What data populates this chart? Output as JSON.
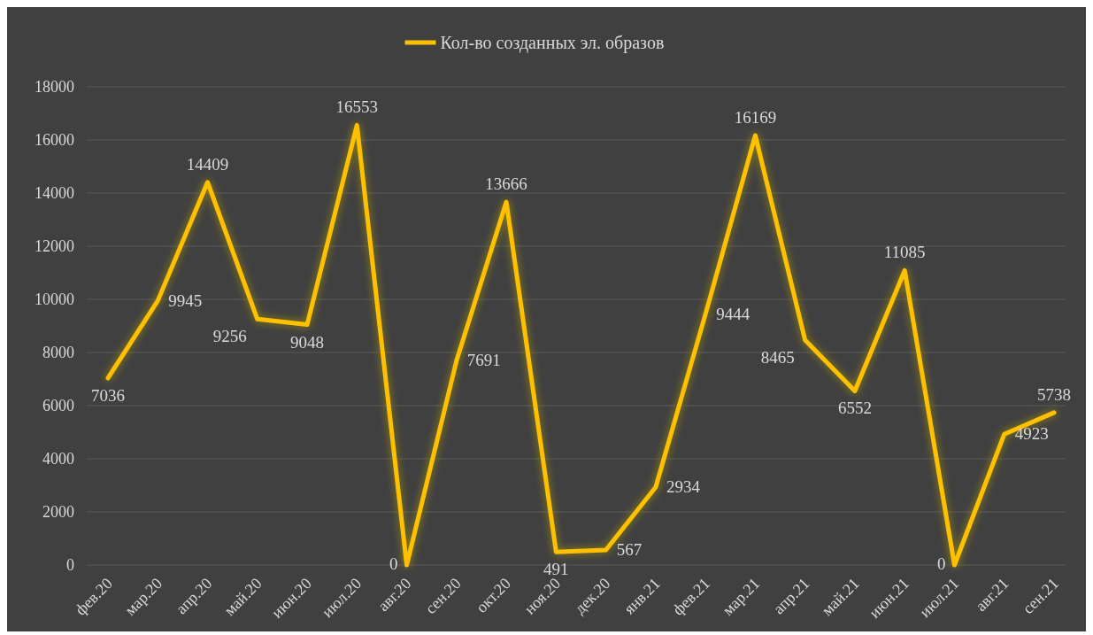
{
  "chart_data": {
    "type": "line",
    "categories": [
      "фев.20",
      "мар.20",
      "апр.20",
      "май.20",
      "июн.20",
      "июл.20",
      "авг.20",
      "сен.20",
      "окт.20",
      "ноя.20",
      "дек.20",
      "янв.21",
      "фев.21",
      "мар.21",
      "апр.21",
      "май.21",
      "июн.21",
      "июл.21",
      "авг.21",
      "сен.21"
    ],
    "series": [
      {
        "name": "Кол-во созданных эл. образов",
        "color": "#ffc000",
        "values": [
          7036,
          9945,
          14409,
          9256,
          9048,
          16553,
          0,
          7691,
          13666,
          491,
          567,
          2934,
          9444,
          16169,
          8465,
          6552,
          11085,
          0,
          4923,
          5738
        ]
      }
    ],
    "ylim": [
      0,
      18000
    ],
    "yticks": [
      0,
      2000,
      4000,
      6000,
      8000,
      10000,
      12000,
      14000,
      16000,
      18000
    ],
    "grid": "y",
    "legend": "top",
    "data_labels": true,
    "marker": "none",
    "line_style": "solid"
  }
}
